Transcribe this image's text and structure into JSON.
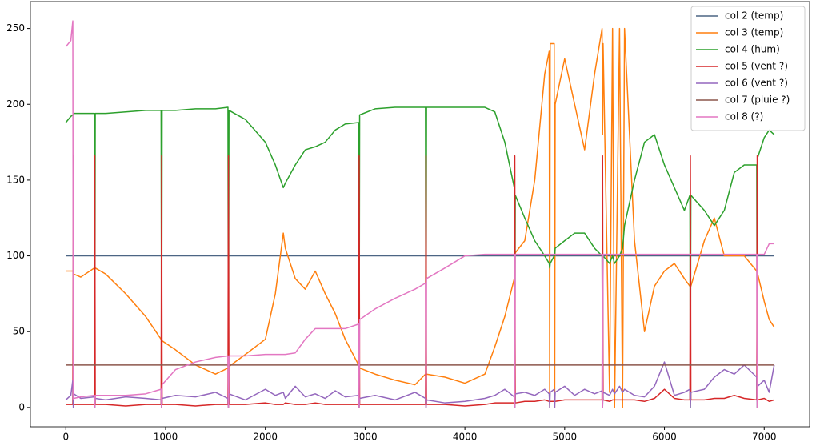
{
  "chart_data": {
    "type": "line",
    "x": [
      0,
      50,
      70,
      75,
      80,
      150,
      285,
      290,
      295,
      400,
      600,
      800,
      955,
      960,
      965,
      1100,
      1300,
      1500,
      1625,
      1630,
      1635,
      1800,
      2000,
      2100,
      2180,
      2200,
      2300,
      2400,
      2500,
      2600,
      2700,
      2800,
      2935,
      2940,
      2945,
      3100,
      3300,
      3500,
      3605,
      3610,
      3615,
      3800,
      4000,
      4200,
      4300,
      4400,
      4495,
      4500,
      4505,
      4600,
      4700,
      4800,
      4845,
      4850,
      4855,
      4895,
      4900,
      4905,
      5000,
      5100,
      5200,
      5300,
      5375,
      5380,
      5385,
      5450,
      5480,
      5500,
      5550,
      5580,
      5600,
      5700,
      5800,
      5900,
      6000,
      6100,
      6200,
      6255,
      6260,
      6265,
      6400,
      6500,
      6600,
      6700,
      6800,
      6925,
      6930,
      6935,
      7000,
      7050,
      7100
    ],
    "series": [
      {
        "name": "col 2 (temp)",
        "color": "#4c6584",
        "values": [
          100,
          100,
          100,
          100,
          100,
          100,
          100,
          100,
          100,
          100,
          100,
          100,
          100,
          100,
          100,
          100,
          100,
          100,
          100,
          100,
          100,
          100,
          100,
          100,
          100,
          100,
          100,
          100,
          100,
          100,
          100,
          100,
          100,
          100,
          100,
          100,
          100,
          100,
          100,
          100,
          100,
          100,
          100,
          100,
          100,
          100,
          100,
          100,
          100,
          100,
          100,
          100,
          100,
          100,
          100,
          100,
          100,
          100,
          100,
          100,
          100,
          100,
          100,
          100,
          100,
          100,
          100,
          100,
          100,
          100,
          100,
          100,
          100,
          100,
          100,
          100,
          100,
          100,
          100,
          100,
          100,
          100,
          100,
          100,
          100,
          100,
          100,
          100,
          100,
          100,
          100
        ]
      },
      {
        "name": "col 3 (temp)",
        "color": "#ff7f0e",
        "values": [
          90,
          90,
          90,
          90,
          88,
          86,
          92,
          92,
          92,
          88,
          75,
          60,
          45,
          45,
          44,
          38,
          28,
          22,
          26,
          27,
          27,
          35,
          45,
          75,
          115,
          105,
          85,
          78,
          90,
          75,
          62,
          45,
          28,
          27,
          26,
          22,
          18,
          15,
          22,
          22,
          22,
          20,
          16,
          22,
          40,
          60,
          85,
          100,
          102,
          110,
          150,
          220,
          235,
          0,
          240,
          240,
          0,
          200,
          230,
          200,
          170,
          220,
          250,
          180,
          240,
          10,
          250,
          0,
          250,
          0,
          250,
          110,
          50,
          80,
          90,
          95,
          85,
          80,
          80,
          80,
          110,
          125,
          100,
          100,
          100,
          90,
          88,
          88,
          70,
          58,
          53
        ]
      },
      {
        "name": "col 4 (hum)",
        "color": "#2ca02c",
        "values": [
          188,
          192,
          193,
          193,
          194,
          194,
          194,
          0,
          194,
          194,
          195,
          196,
          196,
          0,
          196,
          196,
          197,
          197,
          198,
          0,
          196,
          190,
          175,
          160,
          145,
          148,
          160,
          170,
          172,
          175,
          183,
          187,
          188,
          0,
          193,
          197,
          198,
          198,
          198,
          0,
          198,
          198,
          198,
          198,
          195,
          175,
          145,
          0,
          140,
          125,
          110,
          100,
          95,
          92,
          95,
          100,
          100,
          105,
          110,
          115,
          115,
          105,
          100,
          0,
          100,
          95,
          100,
          95,
          100,
          105,
          120,
          150,
          175,
          180,
          160,
          145,
          130,
          140,
          0,
          140,
          130,
          120,
          130,
          155,
          160,
          160,
          0,
          165,
          178,
          183,
          180
        ]
      },
      {
        "name": "col 5 (vent ?)",
        "color": "#d62728",
        "values": [
          2,
          2,
          2,
          166,
          2,
          2,
          2,
          166,
          2,
          2,
          1,
          2,
          2,
          166,
          2,
          2,
          1,
          2,
          2,
          166,
          2,
          2,
          3,
          2,
          2,
          3,
          2,
          2,
          3,
          2,
          2,
          2,
          2,
          166,
          2,
          2,
          2,
          2,
          2,
          166,
          2,
          2,
          1,
          2,
          3,
          3,
          3,
          166,
          3,
          4,
          4,
          5,
          4,
          4,
          4,
          4,
          4,
          4,
          5,
          5,
          5,
          5,
          5,
          166,
          5,
          4,
          5,
          5,
          5,
          5,
          5,
          5,
          4,
          6,
          12,
          6,
          5,
          5,
          166,
          5,
          5,
          6,
          6,
          8,
          6,
          5,
          166,
          5,
          6,
          4,
          5
        ]
      },
      {
        "name": "col 6 (vent ?)",
        "color": "#9467bd",
        "values": [
          5,
          8,
          18,
          0,
          9,
          6,
          7,
          0,
          6,
          5,
          7,
          6,
          5,
          0,
          6,
          8,
          7,
          10,
          6,
          0,
          9,
          5,
          12,
          8,
          10,
          6,
          14,
          7,
          9,
          6,
          11,
          7,
          8,
          0,
          6,
          8,
          5,
          10,
          6,
          0,
          5,
          3,
          4,
          6,
          8,
          12,
          7,
          0,
          9,
          10,
          8,
          12,
          9,
          0,
          10,
          12,
          0,
          10,
          14,
          8,
          12,
          9,
          11,
          0,
          10,
          8,
          12,
          9,
          14,
          10,
          12,
          8,
          7,
          14,
          30,
          8,
          10,
          12,
          0,
          10,
          12,
          20,
          25,
          22,
          28,
          20,
          0,
          14,
          18,
          10,
          28
        ]
      },
      {
        "name": "col 7 (pluie ?)",
        "color": "#8c564b",
        "values": [
          28,
          28,
          28,
          28,
          28,
          28,
          28,
          28,
          28,
          28,
          28,
          28,
          28,
          28,
          28,
          28,
          28,
          28,
          28,
          28,
          28,
          28,
          28,
          28,
          28,
          28,
          28,
          28,
          28,
          28,
          28,
          28,
          28,
          28,
          28,
          28,
          28,
          28,
          28,
          28,
          28,
          28,
          28,
          28,
          28,
          28,
          28,
          28,
          28,
          28,
          28,
          28,
          28,
          28,
          28,
          28,
          28,
          28,
          28,
          28,
          28,
          28,
          28,
          28,
          28,
          28,
          28,
          28,
          28,
          28,
          28,
          28,
          28,
          28,
          28,
          28,
          28,
          28,
          28,
          28,
          28,
          28,
          28,
          28,
          28,
          28,
          28,
          28,
          28,
          28,
          28
        ]
      },
      {
        "name": "col 8 (?)",
        "color": "#e377c2",
        "values": [
          238,
          242,
          255,
          5,
          6,
          7,
          8,
          0,
          8,
          8,
          8,
          9,
          12,
          0,
          15,
          25,
          30,
          33,
          34,
          0,
          34,
          34,
          35,
          35,
          35,
          35,
          36,
          45,
          52,
          52,
          52,
          52,
          55,
          0,
          58,
          65,
          72,
          78,
          82,
          0,
          85,
          92,
          100,
          101,
          101,
          101,
          101,
          0,
          101,
          101,
          101,
          101,
          101,
          101,
          101,
          101,
          101,
          101,
          101,
          101,
          101,
          101,
          101,
          0,
          101,
          101,
          101,
          101,
          101,
          101,
          101,
          101,
          101,
          101,
          101,
          101,
          101,
          101,
          101,
          101,
          101,
          101,
          101,
          101,
          101,
          101,
          0,
          101,
          101,
          108,
          108
        ]
      }
    ],
    "xlim": [
      -355,
      7455
    ],
    "ylim": [
      -12.75,
      267.75
    ],
    "xticks": [
      0,
      1000,
      2000,
      3000,
      4000,
      5000,
      6000,
      7000
    ],
    "yticks": [
      0,
      50,
      100,
      150,
      200,
      250
    ],
    "legend": "upper right"
  }
}
